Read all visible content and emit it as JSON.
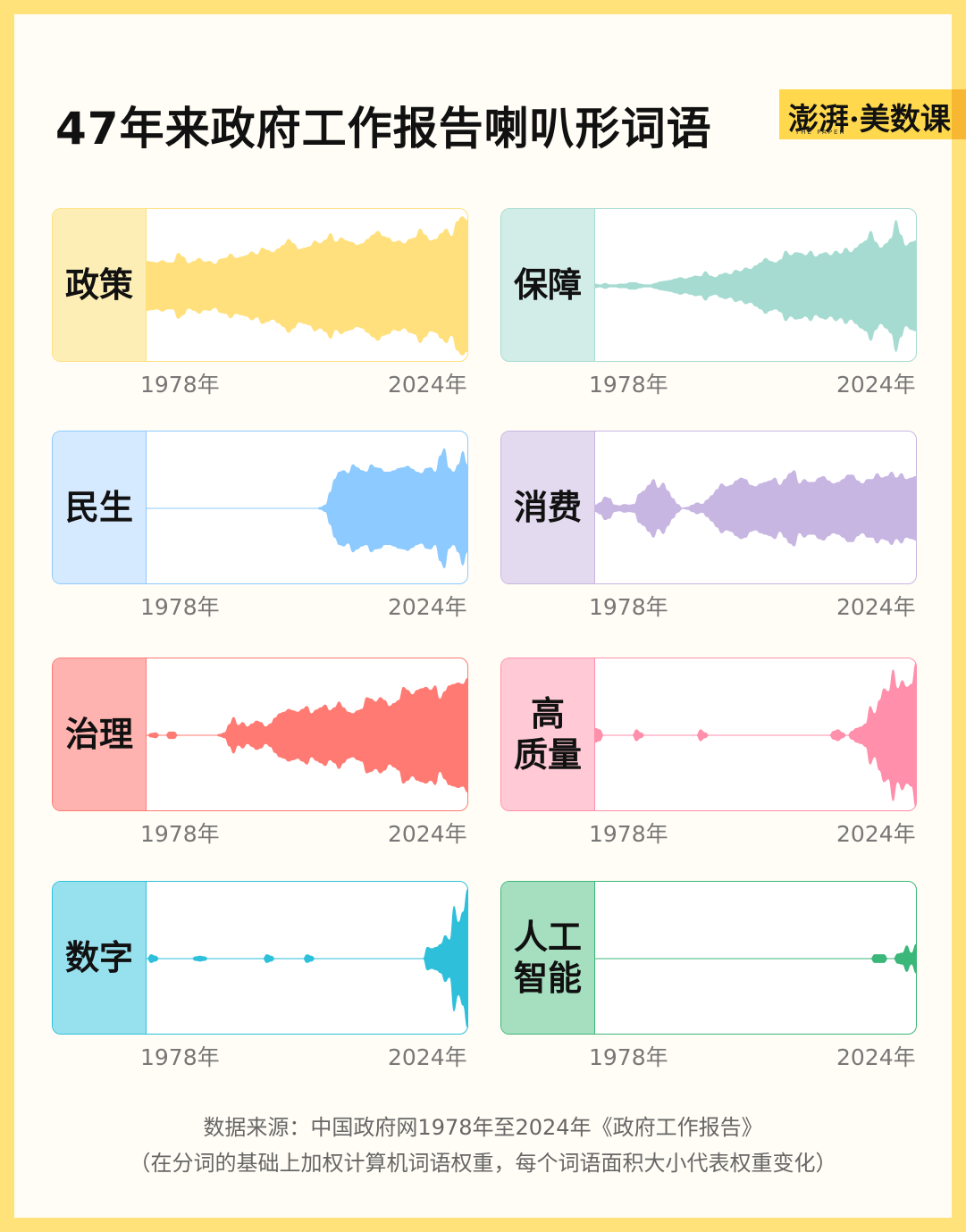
{
  "title": "47年来政府工作报告喇叭形词语",
  "logo": {
    "text": "澎湃·美数课",
    "sub": "THE PAPER"
  },
  "chart_data": {
    "type": "area",
    "x_start": "1978年",
    "x_end": "2024年",
    "panels": [
      {
        "word": "政策",
        "color": "#ffe07d",
        "bg": "#fdeeb6",
        "values": [
          0.34,
          0.33,
          0.32,
          0.35,
          0.32,
          0.32,
          0.45,
          0.4,
          0.31,
          0.34,
          0.38,
          0.33,
          0.34,
          0.3,
          0.37,
          0.38,
          0.44,
          0.38,
          0.4,
          0.42,
          0.47,
          0.43,
          0.52,
          0.49,
          0.46,
          0.51,
          0.56,
          0.64,
          0.58,
          0.5,
          0.52,
          0.54,
          0.62,
          0.58,
          0.63,
          0.72,
          0.6,
          0.66,
          0.62,
          0.6,
          0.56,
          0.58,
          0.64,
          0.7,
          0.75,
          0.68,
          0.66,
          0.6,
          0.62,
          0.58,
          0.64,
          0.66,
          0.78,
          0.7,
          0.62,
          0.64,
          0.72,
          0.78,
          0.68,
          0.88,
          0.95,
          0.9
        ]
      },
      {
        "word": "保障",
        "color": "#a6dbd1",
        "bg": "#d2ece7",
        "values": [
          0.03,
          0.02,
          0.04,
          0.02,
          0.02,
          0.03,
          0.03,
          0.05,
          0.05,
          0.03,
          0.02,
          0.02,
          0.04,
          0.06,
          0.07,
          0.08,
          0.1,
          0.12,
          0.1,
          0.12,
          0.14,
          0.13,
          0.2,
          0.14,
          0.12,
          0.16,
          0.18,
          0.16,
          0.22,
          0.2,
          0.25,
          0.23,
          0.28,
          0.32,
          0.38,
          0.34,
          0.32,
          0.36,
          0.48,
          0.42,
          0.46,
          0.45,
          0.42,
          0.48,
          0.4,
          0.44,
          0.46,
          0.42,
          0.48,
          0.44,
          0.52,
          0.46,
          0.52,
          0.58,
          0.62,
          0.75,
          0.6,
          0.52,
          0.58,
          0.65,
          0.9,
          0.7,
          0.55,
          0.6,
          0.62
        ]
      },
      {
        "word": "民生",
        "color": "#8ccaff",
        "bg": "#d6eaff",
        "values": [
          0.0,
          0.0,
          0.0,
          0.0,
          0.0,
          0.0,
          0.0,
          0.0,
          0.0,
          0.0,
          0.0,
          0.0,
          0.0,
          0.0,
          0.0,
          0.0,
          0.0,
          0.0,
          0.0,
          0.0,
          0.0,
          0.0,
          0.0,
          0.0,
          0.0,
          0.0,
          0.0,
          0.0,
          0.0,
          0.0,
          0.0,
          0.0,
          0.0,
          0.0,
          0.0,
          0.0,
          0.0,
          0.0,
          0.02,
          0.05,
          0.22,
          0.4,
          0.5,
          0.52,
          0.48,
          0.6,
          0.56,
          0.52,
          0.5,
          0.6,
          0.56,
          0.55,
          0.5,
          0.5,
          0.52,
          0.55,
          0.56,
          0.58,
          0.54,
          0.5,
          0.48,
          0.55,
          0.56,
          0.5,
          0.72,
          0.82,
          0.55,
          0.5,
          0.6,
          0.78,
          0.6
        ]
      },
      {
        "word": "消费",
        "color": "#c8b6e2",
        "bg": "#e3daf0",
        "values": [
          0.05,
          0.08,
          0.16,
          0.14,
          0.05,
          0.04,
          0.06,
          0.05,
          0.06,
          0.2,
          0.24,
          0.32,
          0.4,
          0.28,
          0.35,
          0.24,
          0.14,
          0.06,
          0.01,
          0.02,
          0.05,
          0.08,
          0.06,
          0.12,
          0.18,
          0.26,
          0.34,
          0.3,
          0.32,
          0.38,
          0.42,
          0.4,
          0.32,
          0.3,
          0.34,
          0.36,
          0.38,
          0.42,
          0.32,
          0.4,
          0.48,
          0.52,
          0.34,
          0.4,
          0.36,
          0.36,
          0.42,
          0.44,
          0.38,
          0.34,
          0.36,
          0.4,
          0.46,
          0.46,
          0.38,
          0.34,
          0.4,
          0.4,
          0.48,
          0.42,
          0.44,
          0.5,
          0.42,
          0.48,
          0.4,
          0.42,
          0.44
        ]
      },
      {
        "word": "治理",
        "color": "#ff7a73",
        "bg": "#ffb3b0",
        "values": [
          0.0,
          0.03,
          0.04,
          0.0,
          0.0,
          0.05,
          0.05,
          0.0,
          0.0,
          0.0,
          0.0,
          0.0,
          0.0,
          0.0,
          0.0,
          0.0,
          0.02,
          0.04,
          0.15,
          0.25,
          0.14,
          0.18,
          0.12,
          0.16,
          0.2,
          0.18,
          0.12,
          0.16,
          0.24,
          0.3,
          0.32,
          0.36,
          0.34,
          0.32,
          0.36,
          0.4,
          0.3,
          0.35,
          0.38,
          0.42,
          0.34,
          0.38,
          0.46,
          0.38,
          0.32,
          0.3,
          0.34,
          0.36,
          0.52,
          0.5,
          0.46,
          0.52,
          0.48,
          0.4,
          0.44,
          0.48,
          0.66,
          0.62,
          0.56,
          0.62,
          0.64,
          0.66,
          0.62,
          0.68,
          0.5,
          0.6,
          0.68,
          0.7,
          0.72,
          0.7,
          0.78
        ]
      },
      {
        "word": "高\n质量",
        "color": "#ff8fab",
        "bg": "#ffc9d6",
        "values": [
          0.1,
          0.08,
          0.0,
          0.0,
          0.0,
          0.0,
          0.0,
          0.0,
          0.0,
          0.08,
          0.04,
          0.0,
          0.0,
          0.0,
          0.0,
          0.0,
          0.0,
          0.0,
          0.0,
          0.0,
          0.0,
          0.0,
          0.0,
          0.08,
          0.04,
          0.0,
          0.0,
          0.0,
          0.0,
          0.0,
          0.0,
          0.0,
          0.0,
          0.0,
          0.0,
          0.0,
          0.0,
          0.0,
          0.0,
          0.0,
          0.0,
          0.0,
          0.0,
          0.0,
          0.0,
          0.0,
          0.0,
          0.0,
          0.0,
          0.0,
          0.0,
          0.0,
          0.06,
          0.08,
          0.04,
          0.0,
          0.06,
          0.1,
          0.12,
          0.16,
          0.4,
          0.3,
          0.48,
          0.64,
          0.6,
          0.9,
          0.64,
          0.75,
          0.66,
          0.7,
          1.0
        ]
      },
      {
        "word": "数字",
        "color": "#2ec0db",
        "bg": "#97e0ee",
        "values": [
          0.0,
          0.06,
          0.04,
          0.0,
          0.0,
          0.0,
          0.0,
          0.0,
          0.0,
          0.0,
          0.0,
          0.03,
          0.04,
          0.03,
          0.0,
          0.0,
          0.0,
          0.0,
          0.0,
          0.0,
          0.0,
          0.0,
          0.0,
          0.0,
          0.0,
          0.0,
          0.0,
          0.06,
          0.04,
          0.0,
          0.0,
          0.0,
          0.0,
          0.0,
          0.0,
          0.0,
          0.06,
          0.04,
          0.0,
          0.0,
          0.0,
          0.0,
          0.0,
          0.0,
          0.0,
          0.0,
          0.0,
          0.0,
          0.0,
          0.0,
          0.0,
          0.0,
          0.0,
          0.0,
          0.0,
          0.0,
          0.0,
          0.0,
          0.0,
          0.0,
          0.0,
          0.0,
          0.0,
          0.16,
          0.14,
          0.16,
          0.2,
          0.32,
          0.26,
          0.72,
          0.5,
          0.64,
          0.95
        ]
      },
      {
        "word": "人工\n智能",
        "color": "#3bb779",
        "bg": "#a6dfc0",
        "values": [
          0.0,
          0.0,
          0.0,
          0.0,
          0.0,
          0.0,
          0.0,
          0.0,
          0.0,
          0.0,
          0.0,
          0.0,
          0.0,
          0.0,
          0.0,
          0.0,
          0.0,
          0.0,
          0.0,
          0.0,
          0.0,
          0.0,
          0.0,
          0.0,
          0.0,
          0.0,
          0.0,
          0.0,
          0.0,
          0.0,
          0.0,
          0.0,
          0.0,
          0.0,
          0.0,
          0.0,
          0.0,
          0.0,
          0.0,
          0.0,
          0.0,
          0.0,
          0.0,
          0.0,
          0.0,
          0.0,
          0.0,
          0.0,
          0.0,
          0.0,
          0.0,
          0.0,
          0.0,
          0.0,
          0.0,
          0.0,
          0.0,
          0.0,
          0.0,
          0.0,
          0.0,
          0.06,
          0.06,
          0.06,
          0.0,
          0.0,
          0.07,
          0.08,
          0.18,
          0.08,
          0.2
        ]
      }
    ]
  },
  "footer": {
    "source": "数据来源：中国政府网1978年至2024年《政府工作报告》",
    "note": "（在分词的基础上加权计算机词语权重，每个词语面积大小代表权重变化）"
  }
}
